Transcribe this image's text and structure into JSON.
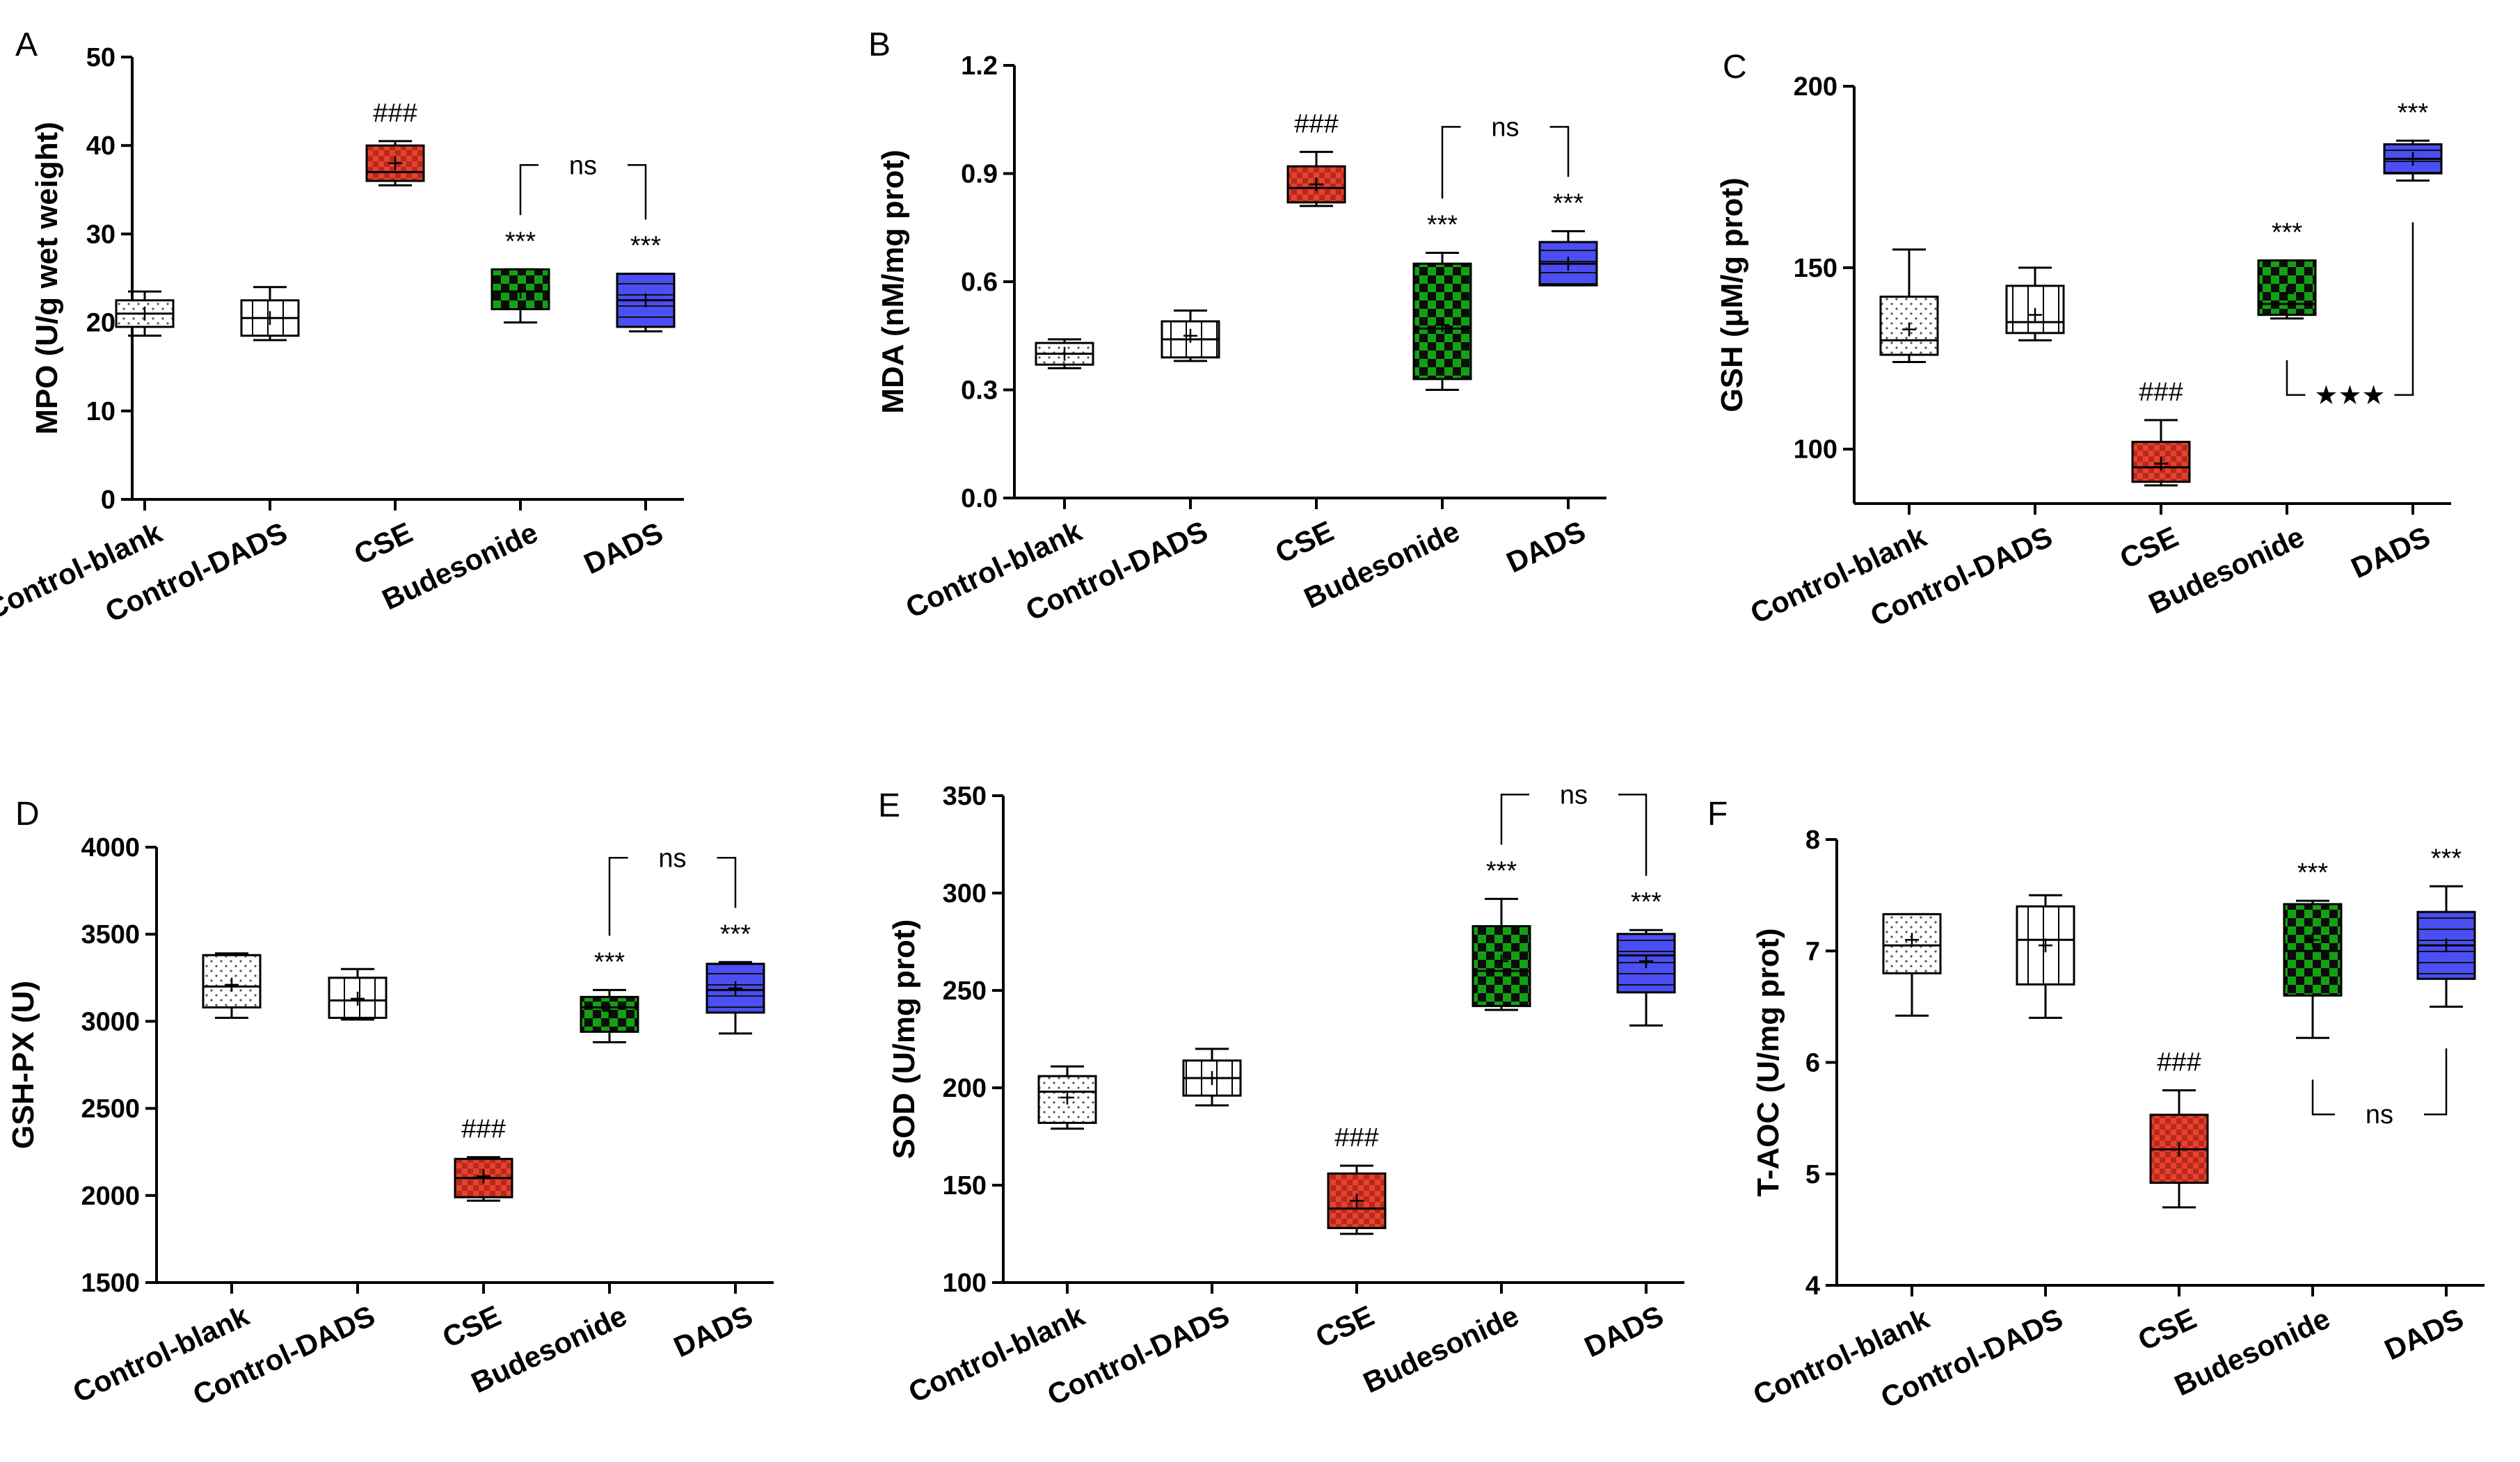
{
  "colors": {
    "Control-blank": "#ffffff",
    "Control-DADS": "#ffffff",
    "CSE": "#e8412e",
    "Budesonide": "#13a113",
    "DADS": "#4b4ef2"
  },
  "chart_data": [
    {
      "type": "box",
      "panel": "A",
      "ylabel": "MPO (U/g wet weight)",
      "ylim": [
        0,
        50
      ],
      "yticks": [
        "0",
        "10",
        "20",
        "30",
        "40",
        "50"
      ],
      "categories": [
        "Control-blank",
        "Control-DADS",
        "CSE",
        "Budesonide",
        "DADS"
      ],
      "boxes": [
        {
          "min": 18.5,
          "q1": 19.5,
          "median": 21,
          "q3": 22.5,
          "max": 23.5,
          "mean": 21
        },
        {
          "min": 18,
          "q1": 18.5,
          "median": 20.5,
          "q3": 22.5,
          "max": 24,
          "mean": 20.5
        },
        {
          "min": 35.5,
          "q1": 36,
          "median": 37,
          "q3": 40,
          "max": 40.5,
          "mean": 38
        },
        {
          "min": 20,
          "q1": 21.5,
          "median": 23.5,
          "q3": 26,
          "max": 26,
          "mean": 23.5
        },
        {
          "min": 19,
          "q1": 19.5,
          "median": 22.5,
          "q3": 25.5,
          "max": 25.5,
          "mean": 22.5
        }
      ],
      "annotations": [
        {
          "category": "CSE",
          "text": "###"
        },
        {
          "category": "Budesonide",
          "text": "***"
        },
        {
          "category": "DADS",
          "text": "***"
        }
      ],
      "brackets": [
        {
          "from": "Budesonide",
          "to": "DADS",
          "text": "ns",
          "position": "above"
        }
      ]
    },
    {
      "type": "box",
      "panel": "B",
      "ylabel": "MDA (nM/mg prot)",
      "ylim": [
        0,
        1.2
      ],
      "yticks": [
        "0.0",
        "0.3",
        "0.6",
        "0.9",
        "1.2"
      ],
      "categories": [
        "Control-blank",
        "Control-DADS",
        "CSE",
        "Budesonide",
        "DADS"
      ],
      "boxes": [
        {
          "min": 0.36,
          "q1": 0.37,
          "median": 0.4,
          "q3": 0.43,
          "max": 0.44,
          "mean": 0.4
        },
        {
          "min": 0.38,
          "q1": 0.39,
          "median": 0.44,
          "q3": 0.49,
          "max": 0.52,
          "mean": 0.45
        },
        {
          "min": 0.81,
          "q1": 0.82,
          "median": 0.86,
          "q3": 0.92,
          "max": 0.96,
          "mean": 0.87
        },
        {
          "min": 0.3,
          "q1": 0.33,
          "median": 0.47,
          "q3": 0.65,
          "max": 0.68,
          "mean": 0.48
        },
        {
          "min": 0.59,
          "q1": 0.59,
          "median": 0.65,
          "q3": 0.71,
          "max": 0.74,
          "mean": 0.65
        }
      ],
      "annotations": [
        {
          "category": "CSE",
          "text": "###"
        },
        {
          "category": "Budesonide",
          "text": "***"
        },
        {
          "category": "DADS",
          "text": "***"
        }
      ],
      "brackets": [
        {
          "from": "Budesonide",
          "to": "DADS",
          "text": "ns",
          "position": "above"
        }
      ]
    },
    {
      "type": "box",
      "panel": "C",
      "ylabel": "GSH (μM/g prot)",
      "ylim": [
        85,
        200
      ],
      "yticks": [
        "100",
        "150",
        "200"
      ],
      "ytickvalues": [
        100,
        150,
        200
      ],
      "categories": [
        "Control-blank",
        "Control-DADS",
        "CSE",
        "Budesonide",
        "DADS"
      ],
      "boxes": [
        {
          "min": 124,
          "q1": 126,
          "median": 130,
          "q3": 142,
          "max": 155,
          "mean": 133
        },
        {
          "min": 130,
          "q1": 132,
          "median": 135,
          "q3": 145,
          "max": 150,
          "mean": 137
        },
        {
          "min": 90,
          "q1": 91,
          "median": 95,
          "q3": 102,
          "max": 108,
          "mean": 96
        },
        {
          "min": 136,
          "q1": 137,
          "median": 140,
          "q3": 152,
          "max": 152,
          "mean": 143
        },
        {
          "min": 174,
          "q1": 176,
          "median": 180,
          "q3": 184,
          "max": 185,
          "mean": 180
        }
      ],
      "annotations": [
        {
          "category": "CSE",
          "text": "###"
        },
        {
          "category": "Budesonide",
          "text": "***"
        },
        {
          "category": "DADS",
          "text": "***"
        }
      ],
      "brackets": [
        {
          "from": "Budesonide",
          "to": "DADS",
          "text": "★★★",
          "position": "below"
        }
      ]
    },
    {
      "type": "box",
      "panel": "D",
      "ylabel": "GSH-PX (U)",
      "ylim": [
        1500,
        4000
      ],
      "yticks": [
        "1500",
        "2000",
        "2500",
        "3000",
        "3500",
        "4000"
      ],
      "categories": [
        "Control-blank",
        "Control-DADS",
        "CSE",
        "Budesonide",
        "DADS"
      ],
      "boxes": [
        {
          "min": 3020,
          "q1": 3080,
          "median": 3200,
          "q3": 3380,
          "max": 3390,
          "mean": 3210
        },
        {
          "min": 3010,
          "q1": 3020,
          "median": 3120,
          "q3": 3250,
          "max": 3300,
          "mean": 3130
        },
        {
          "min": 1970,
          "q1": 1990,
          "median": 2100,
          "q3": 2210,
          "max": 2220,
          "mean": 2110
        },
        {
          "min": 2880,
          "q1": 2940,
          "median": 3080,
          "q3": 3140,
          "max": 3180,
          "mean": 3060
        },
        {
          "min": 2930,
          "q1": 3050,
          "median": 3180,
          "q3": 3330,
          "max": 3340,
          "mean": 3190
        }
      ],
      "annotations": [
        {
          "category": "CSE",
          "text": "###"
        },
        {
          "category": "Budesonide",
          "text": "***"
        },
        {
          "category": "DADS",
          "text": "***"
        }
      ],
      "brackets": [
        {
          "from": "Budesonide",
          "to": "DADS",
          "text": "ns",
          "position": "above"
        }
      ]
    },
    {
      "type": "box",
      "panel": "E",
      "ylabel": "SOD (U/mg prot)",
      "ylim": [
        100,
        350
      ],
      "yticks": [
        "100",
        "150",
        "200",
        "250",
        "300",
        "350"
      ],
      "categories": [
        "Control-blank",
        "Control-DADS",
        "CSE",
        "Budesonide",
        "DADS"
      ],
      "boxes": [
        {
          "min": 179,
          "q1": 182,
          "median": 198,
          "q3": 206,
          "max": 211,
          "mean": 195
        },
        {
          "min": 191,
          "q1": 196,
          "median": 205,
          "q3": 214,
          "max": 220,
          "mean": 205
        },
        {
          "min": 125,
          "q1": 128,
          "median": 138,
          "q3": 156,
          "max": 160,
          "mean": 142
        },
        {
          "min": 240,
          "q1": 242,
          "median": 260,
          "q3": 283,
          "max": 297,
          "mean": 265
        },
        {
          "min": 232,
          "q1": 249,
          "median": 268,
          "q3": 279,
          "max": 281,
          "mean": 265
        }
      ],
      "annotations": [
        {
          "category": "CSE",
          "text": "###"
        },
        {
          "category": "Budesonide",
          "text": "***"
        },
        {
          "category": "DADS",
          "text": "***"
        }
      ],
      "brackets": [
        {
          "from": "Budesonide",
          "to": "DADS",
          "text": "ns",
          "position": "above"
        }
      ]
    },
    {
      "type": "box",
      "panel": "F",
      "ylabel": "T-AOC (U/mg prot)",
      "ylim": [
        4,
        8
      ],
      "yticks": [
        "4",
        "5",
        "6",
        "7",
        "8"
      ],
      "categories": [
        "Control-blank",
        "Control-DADS",
        "CSE",
        "Budesonide",
        "DADS"
      ],
      "boxes": [
        {
          "min": 6.42,
          "q1": 6.8,
          "median": 7.05,
          "q3": 7.33,
          "max": 7.33,
          "mean": 7.1
        },
        {
          "min": 6.4,
          "q1": 6.7,
          "median": 7.1,
          "q3": 7.4,
          "max": 7.5,
          "mean": 7.05
        },
        {
          "min": 4.7,
          "q1": 4.92,
          "median": 5.22,
          "q3": 5.53,
          "max": 5.75,
          "mean": 5.22
        },
        {
          "min": 6.22,
          "q1": 6.6,
          "median": 7.0,
          "q3": 7.42,
          "max": 7.45,
          "mean": 7.1
        },
        {
          "min": 6.5,
          "q1": 6.75,
          "median": 7.05,
          "q3": 7.35,
          "max": 7.58,
          "mean": 7.05
        }
      ],
      "annotations": [
        {
          "category": "CSE",
          "text": "###"
        },
        {
          "category": "Budesonide",
          "text": "***"
        },
        {
          "category": "DADS",
          "text": "***"
        }
      ],
      "brackets": [
        {
          "from": "Budesonide",
          "to": "DADS",
          "text": "ns",
          "position": "below"
        }
      ]
    }
  ]
}
